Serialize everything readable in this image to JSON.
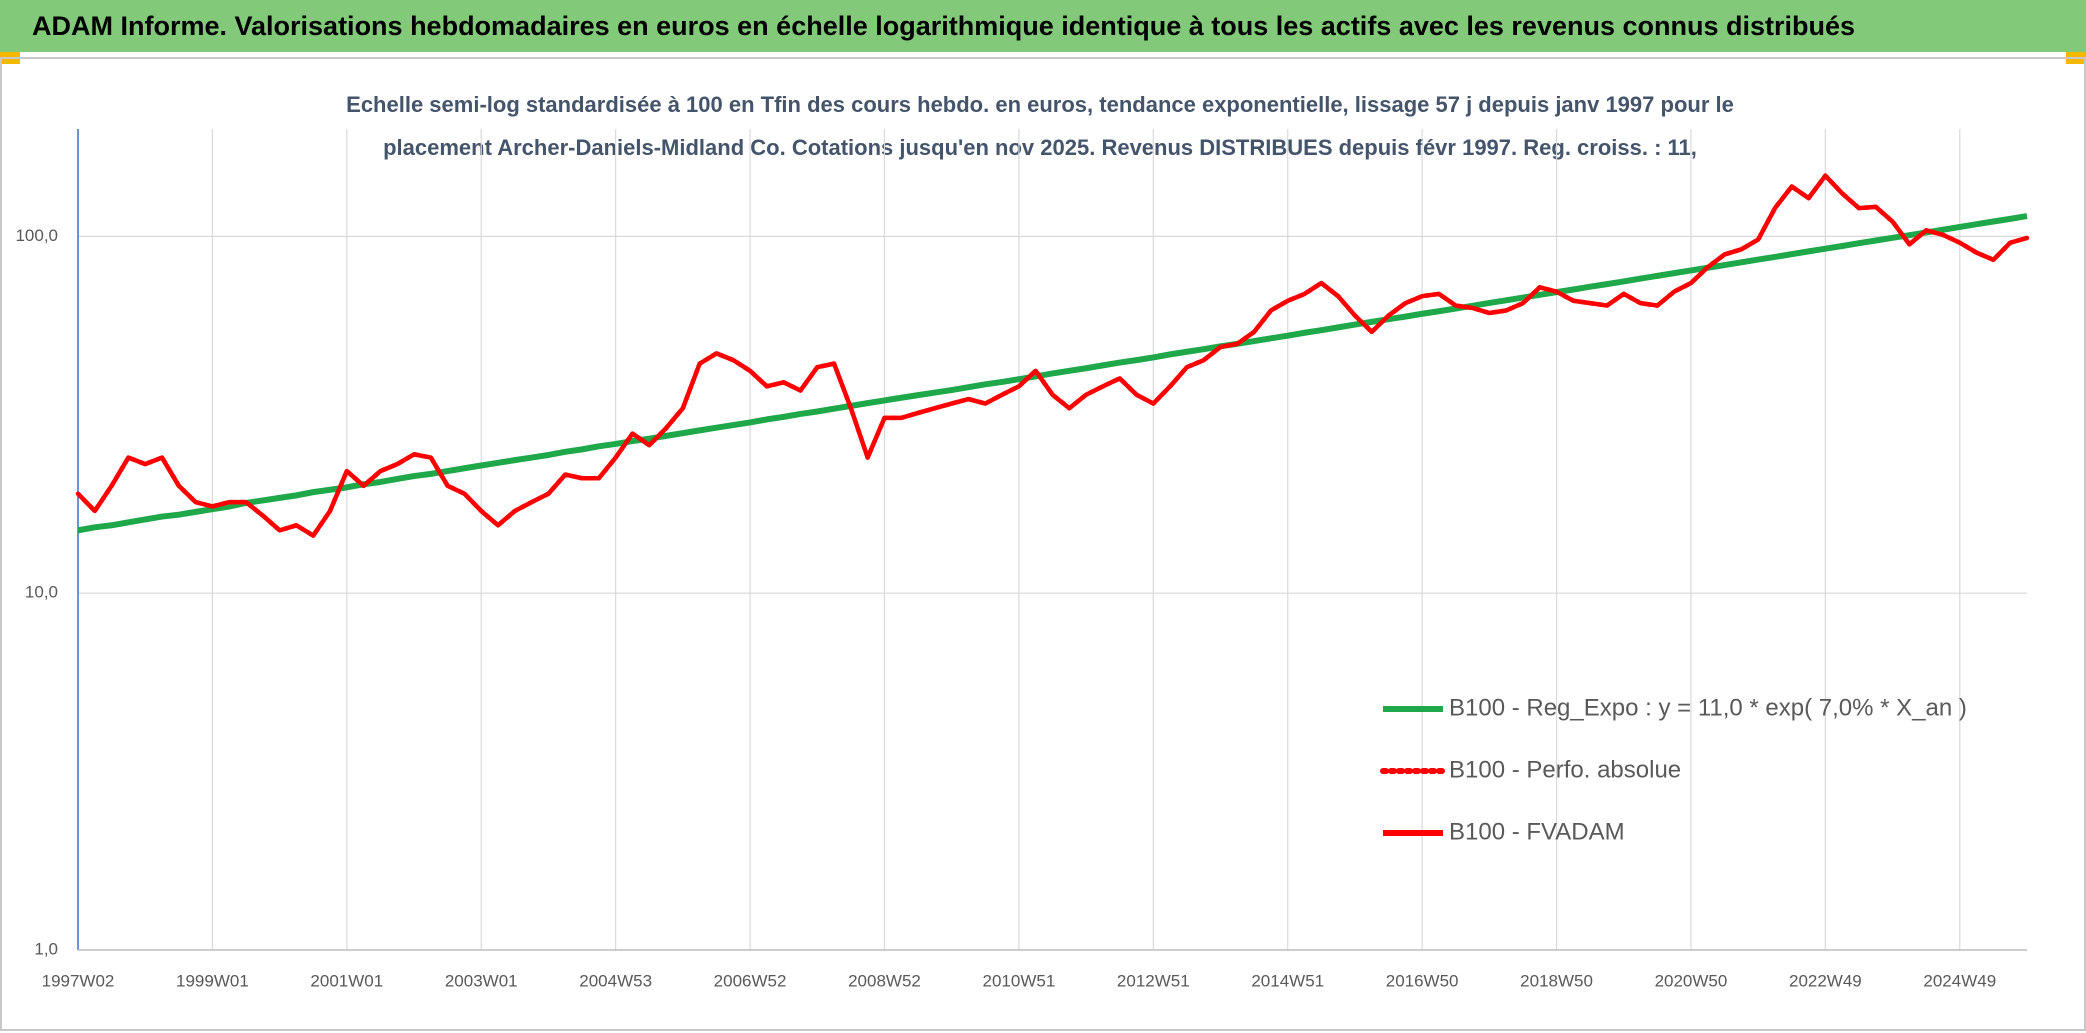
{
  "chart_data": {
    "type": "line",
    "title": "ADAM Informe. Valorisations hebdomadaires en euros en échelle logarithmique identique à tous les actifs avec les revenus connus distribués",
    "subtitle": [
      "Echelle semi-log standardisée à 100 en Tfin des cours hebdo. en euros, tendance exponentielle, lissage 57 j depuis janv 1997 pour le",
      "placement Archer-Daniels-Midland Co. Cotations jusqu'en nov 2025. Revenus DISTRIBUES depuis févr 1997. Reg. croiss. : 11,"
    ],
    "categories": [
      "1997W02",
      null,
      null,
      null,
      null,
      null,
      null,
      null,
      "1999W01",
      null,
      null,
      null,
      null,
      null,
      null,
      null,
      "2001W01",
      null,
      null,
      null,
      null,
      null,
      null,
      null,
      "2003W01",
      null,
      null,
      null,
      null,
      null,
      null,
      null,
      "2004W53",
      null,
      null,
      null,
      null,
      null,
      null,
      null,
      "2006W52",
      null,
      null,
      null,
      null,
      null,
      null,
      null,
      "2008W52",
      null,
      null,
      null,
      null,
      null,
      null,
      null,
      "2010W51",
      null,
      null,
      null,
      null,
      null,
      null,
      null,
      "2012W51",
      null,
      null,
      null,
      null,
      null,
      null,
      null,
      "2014W51",
      null,
      null,
      null,
      null,
      null,
      null,
      null,
      "2016W50",
      null,
      null,
      null,
      null,
      null,
      null,
      null,
      "2018W50",
      null,
      null,
      null,
      null,
      null,
      null,
      null,
      "2020W50",
      null,
      null,
      null,
      null,
      null,
      null,
      null,
      "2022W49",
      null,
      null,
      null,
      null,
      null,
      null,
      null,
      "2024W49",
      null,
      null,
      null,
      null
    ],
    "series": [
      {
        "name": "B100 - Reg_Expo : y = 11,0 * exp( 7,0% *  X_an )",
        "color": "#1ea84a",
        "style": "solid",
        "values": [
          15.0,
          15.3,
          15.5,
          15.8,
          16.1,
          16.4,
          16.6,
          16.9,
          17.2,
          17.5,
          17.9,
          18.2,
          18.5,
          18.8,
          19.2,
          19.5,
          19.8,
          20.2,
          20.5,
          20.9,
          21.3,
          21.6,
          22.0,
          22.4,
          22.8,
          23.2,
          23.6,
          24.0,
          24.4,
          24.9,
          25.3,
          25.8,
          26.2,
          26.7,
          27.1,
          27.6,
          28.1,
          28.6,
          29.1,
          29.6,
          30.1,
          30.7,
          31.2,
          31.8,
          32.3,
          32.9,
          33.5,
          34.1,
          34.7,
          35.3,
          35.9,
          36.5,
          37.1,
          37.8,
          38.5,
          39.1,
          39.8,
          40.5,
          41.3,
          42.0,
          42.7,
          43.5,
          44.3,
          45.0,
          45.8,
          46.7,
          47.5,
          48.3,
          49.2,
          50.0,
          50.9,
          51.8,
          52.7,
          53.7,
          54.6,
          55.6,
          56.6,
          57.6,
          58.6,
          59.6,
          60.7,
          61.7,
          62.8,
          63.9,
          65.1,
          66.2,
          67.4,
          68.6,
          69.8,
          71.0,
          72.3,
          73.5,
          74.8,
          76.2,
          77.5,
          78.9,
          80.3,
          81.7,
          83.1,
          84.6,
          86.1,
          87.6,
          89.2,
          90.8,
          92.4,
          94.0,
          95.7,
          97.4,
          99.1,
          100.8,
          102.6,
          104.4,
          106.3,
          108.2,
          110.1,
          112.0,
          114.0
        ]
      },
      {
        "name": "B100 - Perfo. absolue",
        "color": "#ff0000",
        "style": "dotted",
        "values": [
          19,
          17,
          20,
          24,
          23,
          24,
          20,
          18,
          17.5,
          18,
          18,
          16.5,
          15,
          15.5,
          14.5,
          17,
          22,
          20,
          22,
          23,
          24.5,
          24,
          20,
          19,
          17,
          15.5,
          17,
          18,
          19,
          21.5,
          21,
          21,
          24,
          28,
          26,
          29,
          33,
          44,
          47,
          45,
          42,
          38,
          39,
          37,
          43,
          44,
          33,
          24,
          31,
          31,
          32,
          33,
          34,
          35,
          34,
          36,
          38,
          42,
          36,
          33,
          36,
          38,
          40,
          36,
          34,
          38,
          43,
          45,
          49,
          50,
          54,
          62,
          66,
          69,
          74,
          68,
          60,
          54,
          60,
          65,
          68,
          69,
          64,
          63,
          61,
          62,
          65,
          72,
          70,
          66,
          65,
          64,
          69,
          65,
          64,
          70,
          74,
          82,
          89,
          92,
          98,
          120,
          138,
          128,
          148,
          132,
          120,
          121,
          110,
          95,
          104,
          101,
          96,
          90,
          86,
          96,
          99
        ]
      },
      {
        "name": "B100 - FVADAM",
        "color": "#ff0000",
        "style": "solid",
        "values": [
          19,
          17,
          20,
          24,
          23,
          24,
          20,
          18,
          17.5,
          18,
          18,
          16.5,
          15,
          15.5,
          14.5,
          17,
          22,
          20,
          22,
          23,
          24.5,
          24,
          20,
          19,
          17,
          15.5,
          17,
          18,
          19,
          21.5,
          21,
          21,
          24,
          28,
          26,
          29,
          33,
          44,
          47,
          45,
          42,
          38,
          39,
          37,
          43,
          44,
          33,
          24,
          31,
          31,
          32,
          33,
          34,
          35,
          34,
          36,
          38,
          42,
          36,
          33,
          36,
          38,
          40,
          36,
          34,
          38,
          43,
          45,
          49,
          50,
          54,
          62,
          66,
          69,
          74,
          68,
          60,
          54,
          60,
          65,
          68,
          69,
          64,
          63,
          61,
          62,
          65,
          72,
          70,
          66,
          65,
          64,
          69,
          65,
          64,
          70,
          74,
          82,
          89,
          92,
          98,
          120,
          138,
          128,
          148,
          132,
          120,
          121,
          110,
          95,
          104,
          101,
          96,
          90,
          86,
          96,
          99
        ]
      }
    ],
    "log_scale": true,
    "ylim": [
      1,
      200
    ],
    "yticks": [
      {
        "value": 1,
        "label": "1,0"
      },
      {
        "value": 10,
        "label": "10,0"
      },
      {
        "value": 100,
        "label": "100,0"
      }
    ],
    "grid": true,
    "legend": "lower right"
  }
}
